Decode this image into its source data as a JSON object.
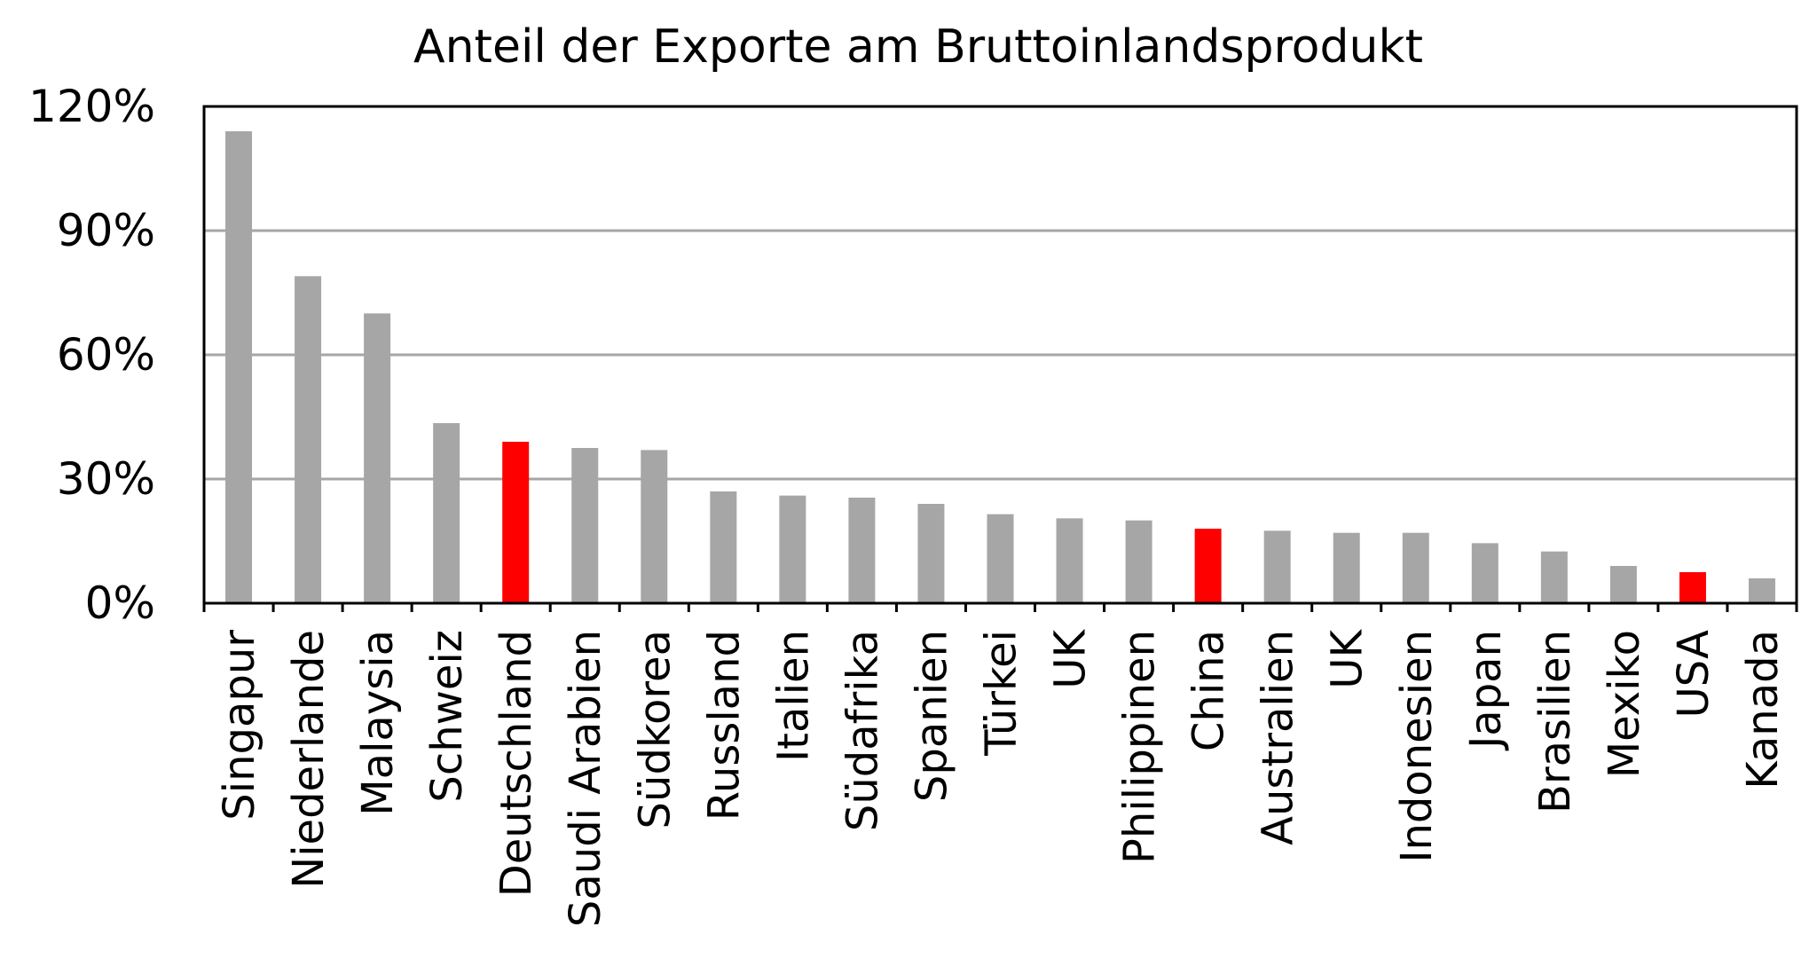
{
  "chart_data": {
    "type": "bar",
    "title": "Anteil der Exporte am Bruttoinlandsprodukt",
    "xlabel": "",
    "ylabel": "",
    "ylim": [
      0,
      120
    ],
    "yticks": [
      "0%",
      "30%",
      "60%",
      "90%",
      "120%"
    ],
    "ytick_values": [
      0,
      30,
      60,
      90,
      120
    ],
    "grid": true,
    "legend": "none",
    "categories": [
      "Singapur",
      "Niederlande",
      "Malaysia",
      "Schweiz",
      "Deutschland",
      "Saudi Arabien",
      "Südkorea",
      "Russland",
      "Italien",
      "Südafrika",
      "Spanien",
      "Türkei",
      "UK",
      "Philippinen",
      "China",
      "Australien",
      "UK",
      "Indonesien",
      "Japan",
      "Brasilien",
      "Mexiko",
      "USA",
      "Kanada"
    ],
    "values": [
      114,
      79,
      70,
      43.5,
      39,
      37.5,
      37,
      27,
      26,
      25.5,
      24,
      21.5,
      20.5,
      20,
      18,
      17.5,
      17,
      17,
      14.5,
      12.5,
      9,
      7.5,
      6
    ],
    "highlighted": [
      "Deutschland",
      "China",
      "USA"
    ],
    "colors": {
      "bar": "#a6a6a6",
      "highlight": "#ff0000",
      "grid": "#a6a6a6",
      "frame": "#000000"
    }
  }
}
